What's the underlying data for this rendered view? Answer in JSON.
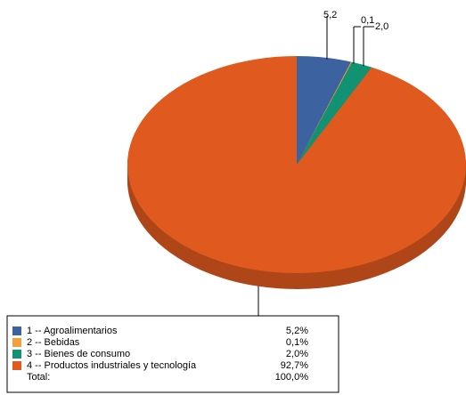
{
  "chart_data": {
    "type": "pie",
    "categories": [
      "1 -- Agroalimentarios",
      "2 -- Bebidas",
      "3 -- Bienes de consumo",
      "4 -- Productos industriales y tecnología"
    ],
    "values": [
      5.2,
      0.1,
      2.0,
      92.7
    ],
    "value_labels": [
      "5,2",
      "0,1",
      "2,0",
      null
    ],
    "colors": [
      "#3d62a0",
      "#f0a040",
      "#119272",
      "#e05a20"
    ],
    "legend": {
      "value_labels": [
        "5,2%",
        "0,1%",
        "2,0%",
        "92,7%"
      ],
      "total_name": "Total:",
      "total": {
        "value": 100,
        "label": "100,0%"
      }
    }
  }
}
